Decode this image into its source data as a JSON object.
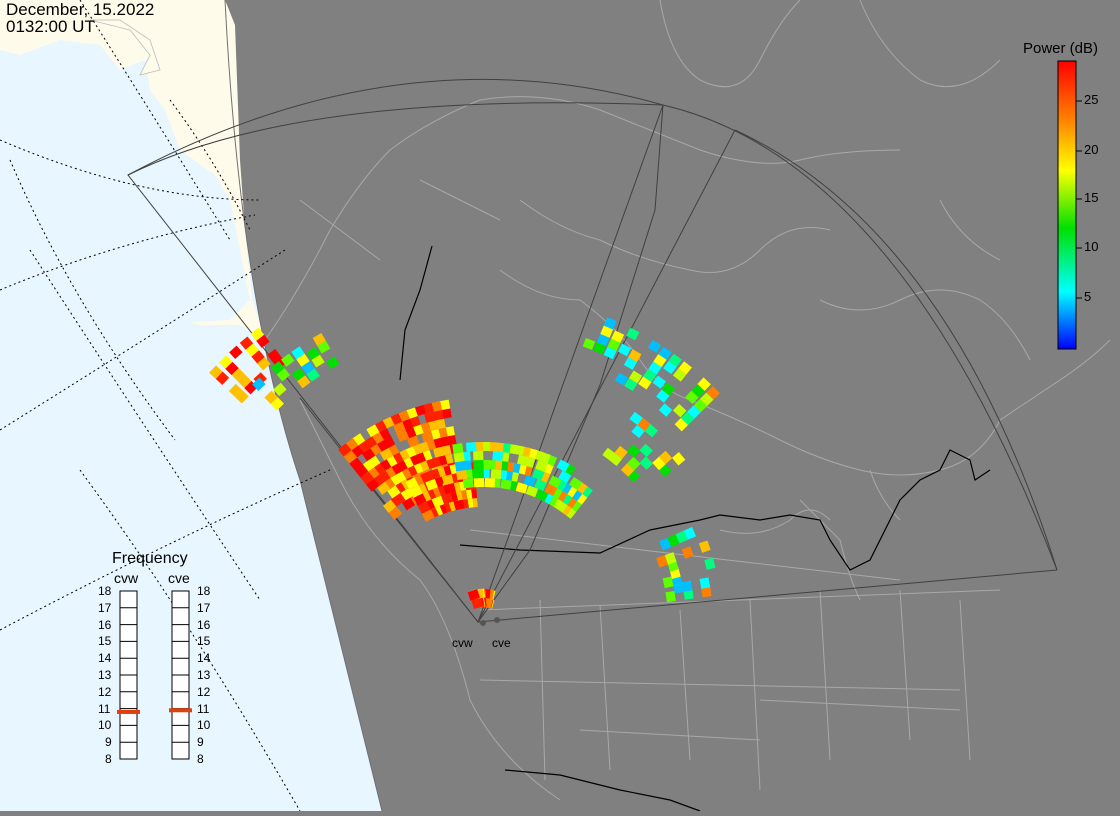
{
  "header": {
    "date": "December, 15.2022",
    "time": "0132:00 UT"
  },
  "colorbar": {
    "title": "Power (dB)",
    "ticks": [
      5,
      10,
      15,
      20,
      25
    ],
    "range": [
      0,
      29
    ],
    "colors": [
      "#0000ff",
      "#00ffff",
      "#00e000",
      "#ffff00",
      "#ff8000",
      "#ff0000"
    ]
  },
  "frequency": {
    "title": "Frequency",
    "radars": [
      {
        "name": "cvw",
        "value": 10.8
      },
      {
        "name": "cve",
        "value": 10.9
      }
    ],
    "levels": [
      18,
      17,
      16,
      15,
      14,
      13,
      12,
      11,
      10,
      9,
      8
    ],
    "marker_color": "#e04010"
  },
  "stations": {
    "west": "cvw",
    "east": "cve"
  },
  "map_colors": {
    "night": "#808080",
    "ocean_day": "#e8f6ff",
    "land_day": "#fffbea",
    "boundary": "#a8a8a8"
  }
}
